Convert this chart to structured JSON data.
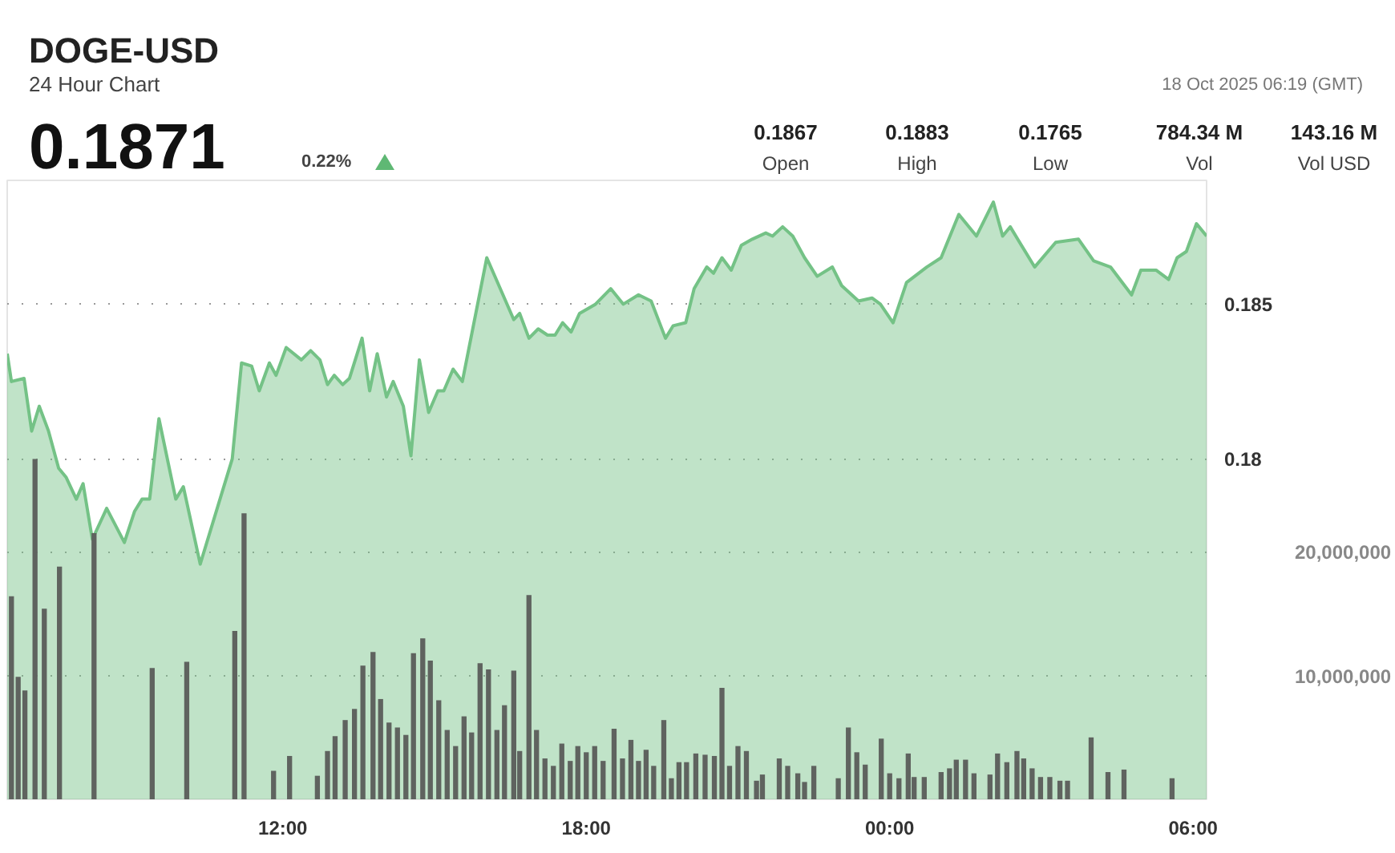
{
  "chart_data": {
    "type": "area",
    "title": "DOGE-USD",
    "subtitle": "24 Hour Chart",
    "annotations": [
      "0.1871",
      "0.22%",
      "0.1867",
      "Open",
      "0.1883",
      "High",
      "0.1765",
      "Low",
      "784.34 M",
      "Vol",
      "143.16 M",
      "Vol USD",
      "18 Oct 2025 06:19 (GMT)"
    ],
    "xlim": [
      "2025-10-17T06:33",
      "2025-10-18T06:16"
    ],
    "xticks": [
      {
        "value": "2025-10-17T12:00",
        "label": "12:00"
      },
      {
        "value": "2025-10-17T18:00",
        "label": "18:00"
      },
      {
        "value": "2025-10-18T00:00",
        "label": "00:00"
      },
      {
        "value": "2025-10-18T06:00",
        "label": "06:00"
      }
    ],
    "ylim": [
      0.169,
      0.189
    ],
    "yticks": [
      0.18,
      0.185
    ],
    "y2lim": [
      0,
      50000000
    ],
    "y2ticks": [
      {
        "value": 10000000,
        "label": "10,000,000"
      },
      {
        "value": 20000000,
        "label": "20,000,000"
      }
    ],
    "grid": "y",
    "series": [
      {
        "color": "#74c286",
        "x": [
          "2025-10-17T06:33",
          "2025-10-17T06:38",
          "2025-10-17T06:53",
          "2025-10-17T07:02",
          "2025-10-17T07:11",
          "2025-10-17T07:22",
          "2025-10-17T07:34",
          "2025-10-17T07:43",
          "2025-10-17T07:55",
          "2025-10-17T08:03",
          "2025-10-17T08:14",
          "2025-10-17T08:31",
          "2025-10-17T08:52",
          "2025-10-17T09:04",
          "2025-10-17T09:13",
          "2025-10-17T09:22",
          "2025-10-17T09:33",
          "2025-10-17T09:53",
          "2025-10-17T10:02",
          "2025-10-17T10:22",
          "2025-10-17T11:00",
          "2025-10-17T11:11",
          "2025-10-17T11:23",
          "2025-10-17T11:32",
          "2025-10-17T11:44",
          "2025-10-17T11:52",
          "2025-10-17T12:04",
          "2025-10-17T12:22",
          "2025-10-17T12:33",
          "2025-10-17T12:44",
          "2025-10-17T12:53",
          "2025-10-17T13:01",
          "2025-10-17T13:11",
          "2025-10-17T13:19",
          "2025-10-17T13:34",
          "2025-10-17T13:43",
          "2025-10-17T13:52",
          "2025-10-17T14:03",
          "2025-10-17T14:11",
          "2025-10-17T14:23",
          "2025-10-17T14:32",
          "2025-10-17T14:42",
          "2025-10-17T14:53",
          "2025-10-17T15:04",
          "2025-10-17T15:11",
          "2025-10-17T15:22",
          "2025-10-17T15:33",
          "2025-10-17T16:02",
          "2025-10-17T16:34",
          "2025-10-17T16:41",
          "2025-10-17T16:52",
          "2025-10-17T17:03",
          "2025-10-17T17:14",
          "2025-10-17T17:23",
          "2025-10-17T17:32",
          "2025-10-17T17:42",
          "2025-10-17T17:52",
          "2025-10-17T18:11",
          "2025-10-17T18:29",
          "2025-10-17T18:44",
          "2025-10-17T19:02",
          "2025-10-17T19:17",
          "2025-10-17T19:34",
          "2025-10-17T19:43",
          "2025-10-17T19:58",
          "2025-10-17T20:08",
          "2025-10-17T20:23",
          "2025-10-17T20:31",
          "2025-10-17T20:41",
          "2025-10-17T20:52",
          "2025-10-17T21:04",
          "2025-10-17T21:17",
          "2025-10-17T21:33",
          "2025-10-17T21:41",
          "2025-10-17T21:53",
          "2025-10-17T22:05",
          "2025-10-17T22:19",
          "2025-10-17T22:34",
          "2025-10-17T22:52",
          "2025-10-17T23:03",
          "2025-10-17T23:23",
          "2025-10-17T23:39",
          "2025-10-17T23:49",
          "2025-10-18T00:04",
          "2025-10-18T00:20",
          "2025-10-18T00:44",
          "2025-10-18T01:01",
          "2025-10-18T01:22",
          "2025-10-18T01:43",
          "2025-10-18T02:03",
          "2025-10-18T02:14",
          "2025-10-18T02:23",
          "2025-10-18T02:52",
          "2025-10-18T03:17",
          "2025-10-18T03:44",
          "2025-10-18T04:02",
          "2025-10-18T04:22",
          "2025-10-18T04:47",
          "2025-10-18T04:58",
          "2025-10-18T05:16",
          "2025-10-18T05:31",
          "2025-10-18T05:41",
          "2025-10-18T05:52",
          "2025-10-18T06:04",
          "2025-10-18T06:16"
        ],
        "values": [
          0.1834,
          0.1825,
          0.1826,
          0.1809,
          0.1817,
          0.1809,
          0.1797,
          0.1794,
          0.1787,
          0.1792,
          0.1774,
          0.1784,
          0.1773,
          0.1783,
          0.1787,
          0.1787,
          0.1813,
          0.1787,
          0.1791,
          0.1766,
          0.18,
          0.1831,
          0.183,
          0.1822,
          0.1831,
          0.1827,
          0.1836,
          0.1832,
          0.1835,
          0.1832,
          0.1824,
          0.1827,
          0.1824,
          0.1826,
          0.1839,
          0.1822,
          0.1834,
          0.182,
          0.1825,
          0.1817,
          0.1801,
          0.1832,
          0.1815,
          0.1822,
          0.1822,
          0.1829,
          0.1825,
          0.1865,
          0.1845,
          0.1847,
          0.1839,
          0.1842,
          0.184,
          0.184,
          0.1844,
          0.1841,
          0.1847,
          0.185,
          0.1855,
          0.185,
          0.1853,
          0.1851,
          0.1839,
          0.1843,
          0.1844,
          0.1855,
          0.1862,
          0.186,
          0.1865,
          0.1861,
          0.1869,
          0.1871,
          0.1873,
          0.1872,
          0.1875,
          0.1872,
          0.1865,
          0.1859,
          0.1862,
          0.1856,
          0.1851,
          0.1852,
          0.185,
          0.1844,
          0.1857,
          0.1862,
          0.1865,
          0.1879,
          0.1872,
          0.1883,
          0.1872,
          0.1875,
          0.1862,
          0.187,
          0.1871,
          0.1864,
          0.1862,
          0.1853,
          0.1861,
          0.1861,
          0.1858,
          0.1865,
          0.1867,
          0.1876,
          0.1872
        ]
      },
      {
        "type": "bar",
        "axis": "y2",
        "color": "#5f635f",
        "x": [
          "2025-10-17T06:38",
          "2025-10-17T06:46",
          "2025-10-17T06:54",
          "2025-10-17T07:06",
          "2025-10-17T07:17",
          "2025-10-17T07:35",
          "2025-10-17T08:16",
          "2025-10-17T09:25",
          "2025-10-17T10:06",
          "2025-10-17T11:03",
          "2025-10-17T11:14",
          "2025-10-17T11:49",
          "2025-10-17T12:08",
          "2025-10-17T12:41",
          "2025-10-17T12:53",
          "2025-10-17T13:02",
          "2025-10-17T13:14",
          "2025-10-17T13:25",
          "2025-10-17T13:35",
          "2025-10-17T13:47",
          "2025-10-17T13:56",
          "2025-10-17T14:06",
          "2025-10-17T14:16",
          "2025-10-17T14:26",
          "2025-10-17T14:35",
          "2025-10-17T14:46",
          "2025-10-17T14:55",
          "2025-10-17T15:05",
          "2025-10-17T15:15",
          "2025-10-17T15:25",
          "2025-10-17T15:35",
          "2025-10-17T15:44",
          "2025-10-17T15:54",
          "2025-10-17T16:04",
          "2025-10-17T16:14",
          "2025-10-17T16:23",
          "2025-10-17T16:34",
          "2025-10-17T16:41",
          "2025-10-17T16:52",
          "2025-10-17T17:01",
          "2025-10-17T17:11",
          "2025-10-17T17:21",
          "2025-10-17T17:31",
          "2025-10-17T17:41",
          "2025-10-17T17:50",
          "2025-10-17T18:00",
          "2025-10-17T18:10",
          "2025-10-17T18:20",
          "2025-10-17T18:33",
          "2025-10-17T18:43",
          "2025-10-17T18:53",
          "2025-10-17T19:02",
          "2025-10-17T19:11",
          "2025-10-17T19:20",
          "2025-10-17T19:32",
          "2025-10-17T19:41",
          "2025-10-17T19:50",
          "2025-10-17T19:59",
          "2025-10-17T20:10",
          "2025-10-17T20:21",
          "2025-10-17T20:32",
          "2025-10-17T20:41",
          "2025-10-17T20:50",
          "2025-10-17T21:00",
          "2025-10-17T21:10",
          "2025-10-17T21:22",
          "2025-10-17T21:29",
          "2025-10-17T21:49",
          "2025-10-17T21:59",
          "2025-10-17T22:11",
          "2025-10-17T22:19",
          "2025-10-17T22:30",
          "2025-10-17T22:59",
          "2025-10-17T23:11",
          "2025-10-17T23:21",
          "2025-10-17T23:31",
          "2025-10-17T23:50",
          "2025-10-18T00:00",
          "2025-10-18T00:11",
          "2025-10-18T00:22",
          "2025-10-18T00:29",
          "2025-10-18T00:41",
          "2025-10-18T01:01",
          "2025-10-18T01:11",
          "2025-10-18T01:19",
          "2025-10-18T01:30",
          "2025-10-18T01:40",
          "2025-10-18T01:59",
          "2025-10-18T02:08",
          "2025-10-18T02:19",
          "2025-10-18T02:31",
          "2025-10-18T02:39",
          "2025-10-18T02:49",
          "2025-10-18T02:59",
          "2025-10-18T03:10",
          "2025-10-18T03:22",
          "2025-10-18T03:31",
          "2025-10-18T03:59",
          "2025-10-18T04:19",
          "2025-10-18T04:38",
          "2025-10-18T05:35"
        ],
        "values": [
          16400000,
          9900000,
          8800000,
          27500000,
          15400000,
          18800000,
          21500000,
          10600000,
          11100000,
          13600000,
          23100000,
          2300000,
          3500000,
          1900000,
          3900000,
          5100000,
          6400000,
          7300000,
          10800000,
          11900000,
          8100000,
          6200000,
          5800000,
          5200000,
          11800000,
          13000000,
          11200000,
          8000000,
          5600000,
          4300000,
          6700000,
          5400000,
          11000000,
          10500000,
          5600000,
          7600000,
          10400000,
          3900000,
          16500000,
          5600000,
          3300000,
          2700000,
          4500000,
          3100000,
          4300000,
          3800000,
          4300000,
          3100000,
          5700000,
          3300000,
          4800000,
          3100000,
          4000000,
          2700000,
          6400000,
          1700000,
          3000000,
          3000000,
          3700000,
          3600000,
          3500000,
          9000000,
          2700000,
          4300000,
          3900000,
          1500000,
          2000000,
          3300000,
          2700000,
          2100000,
          1400000,
          2700000,
          1700000,
          5800000,
          3800000,
          2800000,
          4900000,
          2100000,
          1700000,
          3700000,
          1800000,
          1800000,
          2200000,
          2500000,
          3200000,
          3200000,
          2100000,
          2000000,
          3700000,
          3000000,
          3900000,
          3300000,
          2500000,
          1800000,
          1800000,
          1500000,
          1500000,
          5000000,
          2200000,
          2400000,
          1700000
        ]
      }
    ]
  }
}
